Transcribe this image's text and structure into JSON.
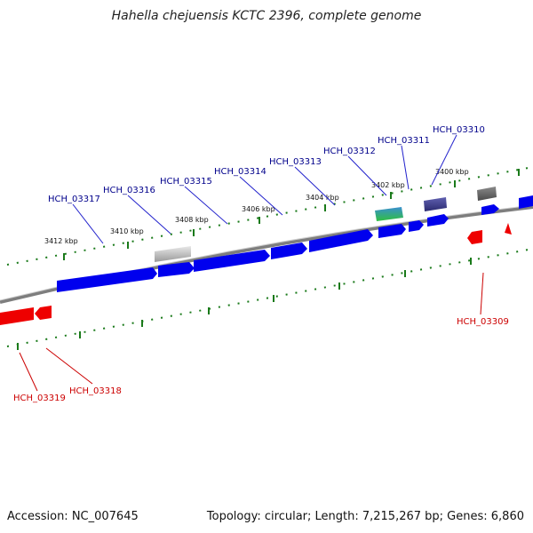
{
  "title": "Hahella chejuensis KCTC 2396, complete genome",
  "accession_label": "Accession: NC_007645",
  "summary_label": "Topology: circular; Length: 7,215,267 bp; Genes: 6,860",
  "colors": {
    "forward_gene": "#0000ee",
    "reverse_gene": "#ee0000",
    "backbone": "#808080",
    "tick": "#1a7a1a",
    "forward_label": "#00008b",
    "reverse_label": "#cc0000"
  },
  "scale_ticks": [
    "3412 kbp",
    "3410 kbp",
    "3408 kbp",
    "3406 kbp",
    "3404 kbp",
    "3402 kbp",
    "3400 kbp"
  ],
  "forward_genes": [
    "HCH_03317",
    "HCH_03316",
    "HCH_03315",
    "HCH_03314",
    "HCH_03313",
    "HCH_03312",
    "HCH_03311",
    "HCH_03310"
  ],
  "reverse_genes": [
    "HCH_03319",
    "HCH_03318",
    "HCH_03309"
  ]
}
